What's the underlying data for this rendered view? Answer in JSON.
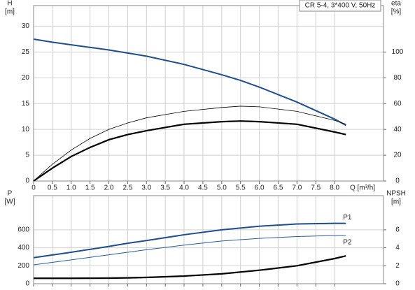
{
  "chart_data": [
    {
      "type": "line",
      "legend_title": "CR 5-4, 3*400 V, 50Hz",
      "y_label": "H",
      "y_unit": "[m]",
      "y2_label": "eta",
      "y2_unit": "[%]",
      "x_label": "Q [m³/h]",
      "x": [
        0,
        0.5,
        1,
        1.5,
        2,
        2.5,
        3,
        4,
        5,
        5.5,
        6,
        7,
        8,
        8.3
      ],
      "series": [
        {
          "color": "#1f4e8c",
          "values": [
            27.5,
            26.9,
            26.4,
            25.9,
            25.4,
            24.8,
            24.2,
            22.6,
            20.6,
            19.5,
            18.2,
            15.3,
            12,
            10.8
          ]
        },
        {
          "color": "#000000",
          "axis": "y2",
          "values": [
            0,
            13,
            24,
            33,
            40,
            45,
            49,
            54,
            57,
            58,
            57.5,
            54,
            47,
            44
          ]
        },
        {
          "color": "#000000",
          "axis": "y2",
          "values": [
            0,
            10,
            19,
            26,
            32,
            36,
            39,
            44,
            46,
            46.5,
            46,
            44,
            38,
            36
          ]
        }
      ],
      "xlim": [
        0,
        9.3
      ],
      "xticks": [
        0,
        0.5,
        {
          "value": 1,
          "label": "1.0"
        },
        1.5,
        {
          "value": 2,
          "label": "2.0"
        },
        2.5,
        {
          "value": 3,
          "label": "3.0"
        },
        3.5,
        {
          "value": 4,
          "label": "4.0"
        },
        4.5,
        {
          "value": 5,
          "label": "5.0"
        },
        5.5,
        {
          "value": 6,
          "label": "6.0"
        },
        6.5,
        {
          "value": 7,
          "label": "7.0"
        },
        7.5,
        {
          "value": 8,
          "label": "8.0"
        }
      ],
      "ylim": [
        0,
        34
      ],
      "yticks": [
        0,
        5,
        10,
        15,
        20,
        25,
        30
      ],
      "y2lim": [
        0,
        136
      ],
      "y2ticks": [
        0,
        20,
        40,
        60,
        80,
        100
      ],
      "grid": true
    },
    {
      "type": "line",
      "y_label": "P",
      "y_unit": "[W]",
      "y2_label": "NPSH",
      "y2_unit": "[m]",
      "x": [
        0,
        1,
        2,
        2.5,
        3,
        4,
        5,
        6,
        7,
        8,
        8.3
      ],
      "series": [
        {
          "name": "P1",
          "color": "#1f4e8c",
          "values": [
            290,
            350,
            415,
            450,
            480,
            545,
            600,
            640,
            665,
            672,
            672
          ]
        },
        {
          "name": "P2",
          "color": "#2a5b9a",
          "values": [
            210,
            265,
            322,
            350,
            378,
            430,
            475,
            505,
            525,
            537,
            538
          ]
        },
        {
          "color": "#000000",
          "axis": "y2",
          "values": [
            0.6,
            0.6,
            0.62,
            0.65,
            0.7,
            0.85,
            1.1,
            1.5,
            2.0,
            2.8,
            3.1
          ]
        }
      ],
      "xlim": [
        0,
        9.3
      ],
      "xticks": [
        0,
        0.5,
        1,
        1.5,
        2,
        2.5,
        3,
        3.5,
        4,
        4.5,
        5,
        5.5,
        6,
        6.5,
        7,
        7.5,
        8
      ],
      "ylim": [
        0,
        980
      ],
      "yticks": [
        0,
        200,
        400,
        600
      ],
      "y2lim": [
        0,
        9.8
      ],
      "y2ticks": [
        0,
        2,
        4,
        6
      ],
      "grid": true
    }
  ]
}
